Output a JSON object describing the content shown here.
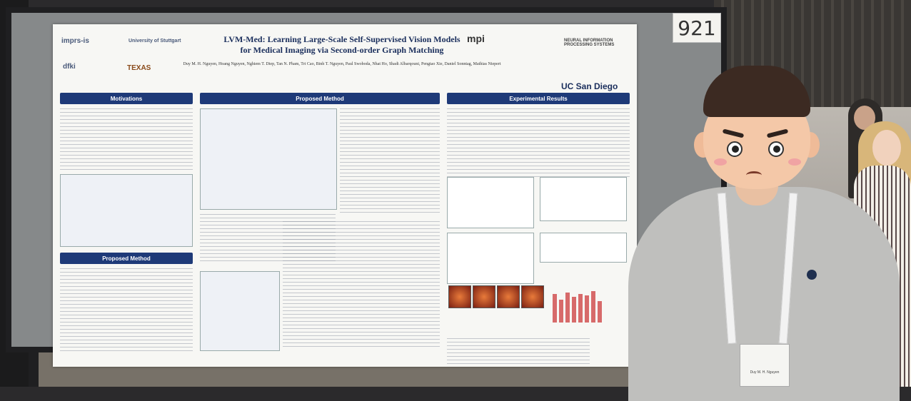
{
  "booth_number": "921",
  "poster": {
    "title_line1": "LVM-Med: Learning Large-Scale Self-Supervised Vision Models",
    "title_line2": "for Medical Imaging via Second-order Graph Matching",
    "authors": "Duy M. H. Nguyen, Hoang Nguyen, Nghiem T. Diep, Tan N. Pham, Tri Cao, Binh T. Nguyen, Paul Swoboda, Nhat Ho, Shadi Albarqouni, Pengtao Xie, Daniel Sonntag, Mathias Niepert",
    "logos_left": [
      "imprs-is",
      "University of Stuttgart",
      "dfki",
      "TEXAS"
    ],
    "logos_right": [
      "mpi",
      "NEURAL INFORMATION PROCESSING SYSTEMS",
      "UC San Diego"
    ],
    "sections": {
      "motivations": "Motivations",
      "proposed_method": "Proposed Method",
      "proposed_method_left": "Proposed Method",
      "experimental_results": "Experimental Results"
    }
  },
  "name_badge": "Duy M. H. Nguyen",
  "colors": {
    "poster_header": "#1e3a78",
    "board": "#86898a"
  }
}
